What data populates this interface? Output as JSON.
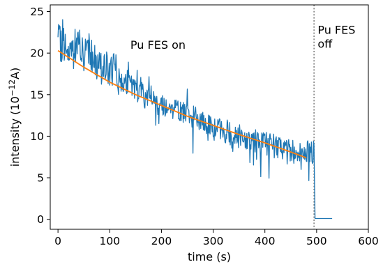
{
  "chart_data": {
    "type": "line",
    "xlabel": "time (s)",
    "ylabel": "intensity (10",
    "ylabel_exp": "−12",
    "ylabel_tail": "A)",
    "xlim": [
      -15,
      600
    ],
    "ylim": [
      -1.2,
      25.8
    ],
    "x_ticks": [
      0,
      100,
      200,
      300,
      400,
      500,
      600
    ],
    "y_ticks": [
      0,
      5,
      10,
      15,
      20,
      25
    ],
    "grid": false,
    "annotations": [
      {
        "text": "Pu FES on",
        "x": 140,
        "y": 20.5
      },
      {
        "text_lines": [
          "Pu FES",
          "off"
        ],
        "x": 502,
        "y": 22.3
      }
    ],
    "vline": {
      "x": 495,
      "style": "dotted",
      "color": "#808080"
    },
    "series": [
      {
        "kind": "noisy_measurement",
        "color": "#1f77b4",
        "x": [
          0,
          10,
          20,
          30,
          40,
          50,
          60,
          70,
          80,
          90,
          100,
          110,
          120,
          130,
          140,
          150,
          160,
          170,
          180,
          190,
          200,
          210,
          220,
          230,
          240,
          250,
          260,
          270,
          280,
          290,
          300,
          310,
          320,
          330,
          340,
          350,
          360,
          370,
          380,
          390,
          400,
          410,
          420,
          430,
          440,
          450,
          460,
          470,
          480,
          490,
          495,
          497,
          500,
          510,
          520,
          530
        ],
        "y": [
          21.5,
          20.5,
          21.0,
          20.0,
          21.5,
          19.5,
          20.0,
          19.0,
          18.0,
          18.5,
          17.5,
          18.0,
          16.5,
          16.5,
          16.0,
          15.5,
          15.5,
          14.5,
          15.0,
          14.0,
          14.0,
          13.5,
          13.5,
          13.0,
          13.0,
          12.5,
          12.5,
          12.0,
          11.5,
          11.5,
          11.0,
          11.0,
          10.5,
          10.5,
          10.0,
          10.0,
          9.8,
          9.5,
          9.5,
          9.3,
          9.0,
          9.0,
          8.8,
          8.6,
          8.5,
          8.3,
          8.0,
          8.0,
          8.2,
          8.0,
          8.0,
          0.1,
          0.1,
          0.1,
          0.1,
          0.1
        ]
      },
      {
        "kind": "fit",
        "color": "#ff7f0e",
        "x": [
          0,
          50,
          100,
          150,
          200,
          250,
          300,
          350,
          400,
          450,
          480
        ],
        "y": [
          20.3,
          18.3,
          16.5,
          15.0,
          13.7,
          12.4,
          11.3,
          10.2,
          9.2,
          8.1,
          7.4
        ]
      }
    ]
  }
}
